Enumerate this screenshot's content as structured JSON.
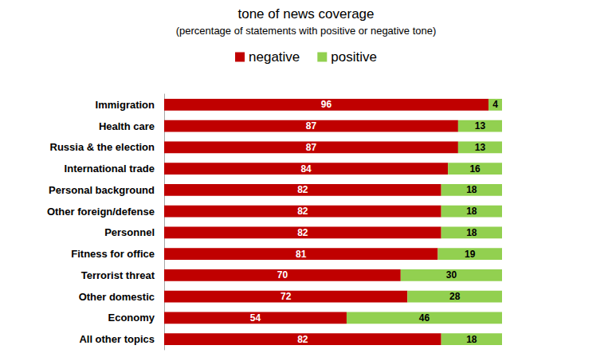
{
  "chart_data": {
    "type": "bar",
    "title": "tone of news coverage",
    "subtitle": "(percentage of statements with positive or negative tone)",
    "categories": [
      "Immigration",
      "Health care",
      "Russia & the election",
      "International trade",
      "Personal background",
      "Other foreign/defense",
      "Personnel",
      "Fitness for office",
      "Terrorist threat",
      "Other domestic",
      "Economy",
      "All other topics"
    ],
    "series": [
      {
        "name": "negative",
        "color": "#c00000",
        "values": [
          96,
          87,
          87,
          84,
          82,
          82,
          82,
          81,
          70,
          72,
          54,
          82
        ]
      },
      {
        "name": "positive",
        "color": "#92d050",
        "values": [
          4,
          13,
          13,
          16,
          18,
          18,
          18,
          19,
          30,
          28,
          46,
          18
        ]
      }
    ],
    "xlim": [
      0,
      100
    ],
    "orientation": "horizontal",
    "stacked": true,
    "data_labels": true,
    "legend": "top",
    "grid": false,
    "tick_labels": "y"
  }
}
